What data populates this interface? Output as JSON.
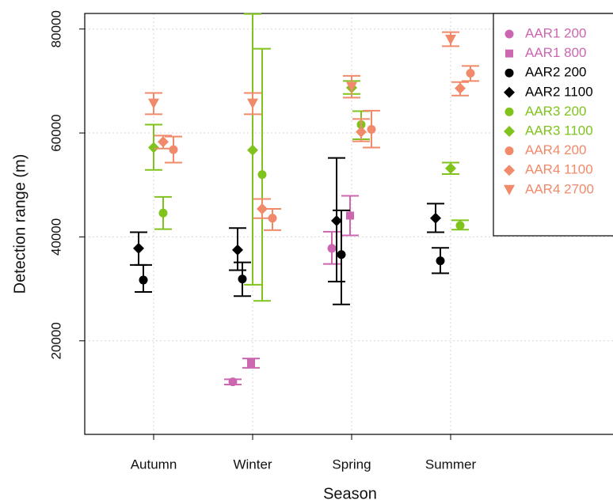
{
  "chart_data": {
    "type": "errorbar",
    "xlabel": "Season",
    "ylabel": "Detection range (m)",
    "categories": [
      "Autumn",
      "Winter",
      "Spring",
      "Summer"
    ],
    "ylim": [
      2000,
      83000
    ],
    "yticks": [
      20000,
      40000,
      60000,
      80000
    ],
    "grid": true,
    "legend": "upper right",
    "series": [
      {
        "name": "AAR1 200",
        "color": "#cc66b0",
        "marker": "circle",
        "values": [
          null,
          12100,
          37800,
          null
        ],
        "low": [
          null,
          11600,
          34800,
          null
        ],
        "high": [
          null,
          12600,
          41000,
          null
        ]
      },
      {
        "name": "AAR1 800",
        "color": "#cc66b0",
        "marker": "square",
        "values": [
          null,
          15700,
          44100,
          null
        ],
        "low": [
          null,
          14800,
          40300,
          null
        ],
        "high": [
          null,
          16600,
          47900,
          null
        ]
      },
      {
        "name": "AAR2 200",
        "color": "#000000",
        "marker": "circle",
        "values": [
          31700,
          31900,
          36600,
          35400
        ],
        "low": [
          29400,
          28600,
          27000,
          33000
        ],
        "high": [
          34600,
          35100,
          45100,
          37900
        ]
      },
      {
        "name": "AAR2 1100",
        "color": "#000000",
        "marker": "diamond",
        "values": [
          37800,
          37500,
          43100,
          43600
        ],
        "low": [
          34600,
          33600,
          31400,
          40900
        ],
        "high": [
          40900,
          41700,
          55200,
          46400
        ]
      },
      {
        "name": "AAR3 200",
        "color": "#80c31c",
        "marker": "circle",
        "values": [
          44600,
          52000,
          61600,
          42200
        ],
        "low": [
          41500,
          27700,
          58800,
          41400
        ],
        "high": [
          47700,
          76200,
          64200,
          43200
        ]
      },
      {
        "name": "AAR3 1100",
        "color": "#80c31c",
        "marker": "diamond",
        "values": [
          57200,
          56700,
          68700,
          53200
        ],
        "low": [
          52900,
          30800,
          67500,
          52100
        ],
        "high": [
          61600,
          82900,
          70000,
          54300
        ]
      },
      {
        "name": "AAR4 200",
        "color": "#f08a6a",
        "marker": "circle",
        "values": [
          56800,
          43600,
          60700,
          71500
        ],
        "low": [
          54300,
          41300,
          57200,
          70000
        ],
        "high": [
          59300,
          45400,
          64300,
          72900
        ]
      },
      {
        "name": "AAR4 1100",
        "color": "#f08a6a",
        "marker": "diamond",
        "values": [
          58300,
          45400,
          60200,
          68600
        ],
        "low": [
          57000,
          43600,
          58400,
          67200
        ],
        "high": [
          59500,
          47300,
          62700,
          69800
        ]
      },
      {
        "name": "AAR4 2700",
        "color": "#f08a6a",
        "marker": "triangle-down",
        "values": [
          65700,
          65700,
          68900,
          78000
        ],
        "low": [
          63600,
          63600,
          66800,
          76700
        ],
        "high": [
          67700,
          67700,
          71000,
          79400
        ]
      }
    ]
  }
}
